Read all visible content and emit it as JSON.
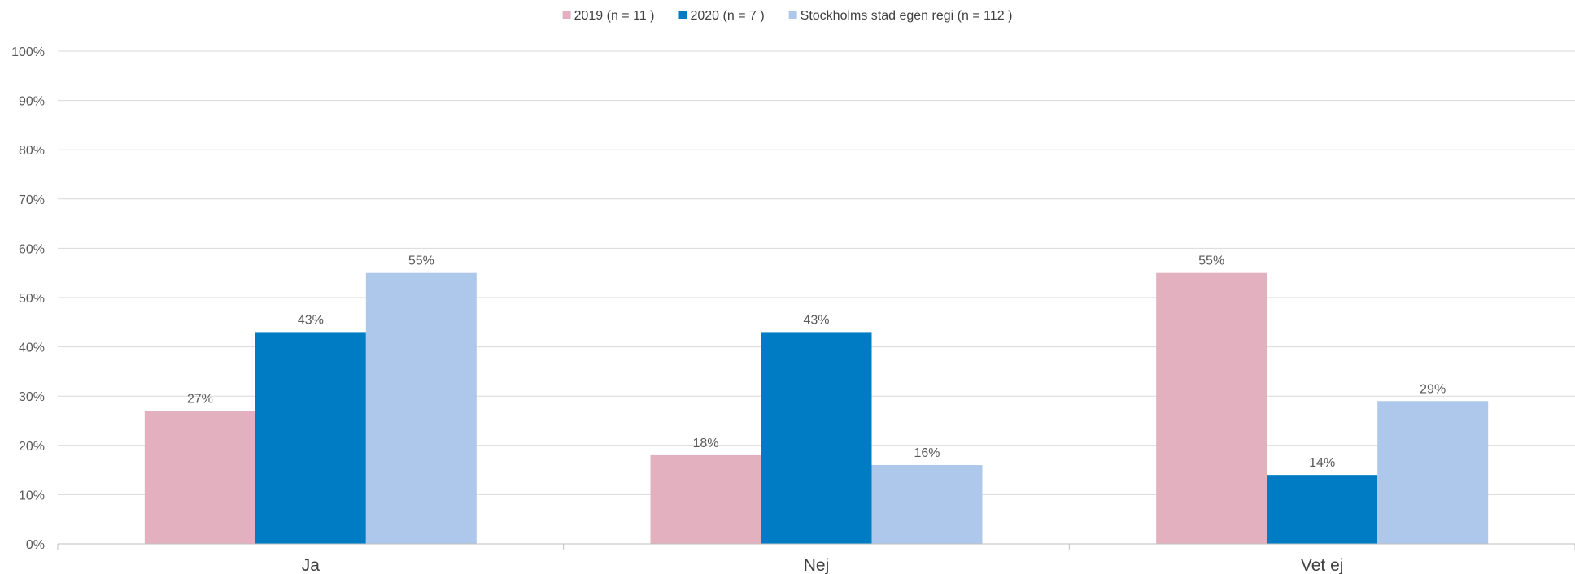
{
  "chart_data": {
    "type": "bar",
    "categories": [
      "Ja",
      "Nej",
      "Vet ej"
    ],
    "series": [
      {
        "name": "2019 (n = 11 )",
        "color": "#e3b0c0",
        "values": [
          27,
          18,
          55
        ],
        "labels": [
          "27%",
          "18%",
          "55%"
        ]
      },
      {
        "name": "2020 (n = 7 )",
        "color": "#007cc4",
        "values": [
          43,
          43,
          14
        ],
        "labels": [
          "43%",
          "43%",
          "14%"
        ]
      },
      {
        "name": "Stockholms stad egen regi (n = 112 )",
        "color": "#aec8eb",
        "values": [
          55,
          16,
          29
        ],
        "labels": [
          "55%",
          "16%",
          "29%"
        ]
      }
    ],
    "y_ticks": [
      "0%",
      "10%",
      "20%",
      "30%",
      "40%",
      "50%",
      "60%",
      "70%",
      "80%",
      "90%",
      "100%"
    ],
    "ylim": [
      0,
      100
    ],
    "grid": true,
    "legend_position": "top-center"
  }
}
